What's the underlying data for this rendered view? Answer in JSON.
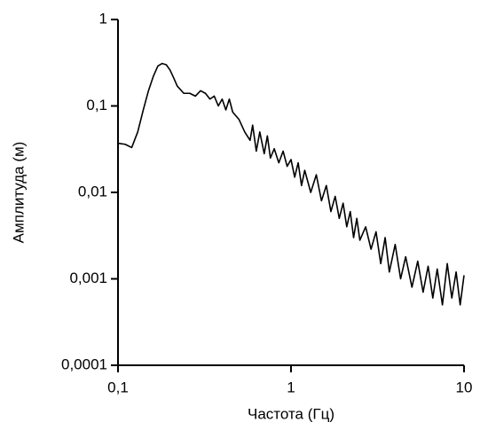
{
  "chart_data": {
    "type": "line",
    "xlabel": "Частота (Гц)",
    "ylabel": "Амплитуда (м)",
    "xscale": "log",
    "yscale": "log",
    "color": "#000000",
    "x": [
      0.1,
      0.11,
      0.12,
      0.13,
      0.14,
      0.15,
      0.16,
      0.17,
      0.18,
      0.19,
      0.2,
      0.21,
      0.22,
      0.24,
      0.26,
      0.28,
      0.3,
      0.32,
      0.34,
      0.36,
      0.38,
      0.4,
      0.42,
      0.44,
      0.46,
      0.5,
      0.54,
      0.58,
      0.6,
      0.63,
      0.66,
      0.7,
      0.73,
      0.76,
      0.8,
      0.85,
      0.9,
      0.95,
      1.0,
      1.05,
      1.1,
      1.15,
      1.2,
      1.3,
      1.4,
      1.5,
      1.6,
      1.7,
      1.8,
      1.9,
      2.0,
      2.1,
      2.2,
      2.3,
      2.4,
      2.5,
      2.7,
      2.9,
      3.1,
      3.3,
      3.5,
      3.7,
      4.0,
      4.3,
      4.6,
      5.0,
      5.4,
      5.8,
      6.2,
      6.6,
      7.0,
      7.5,
      8.0,
      8.5,
      9.0,
      9.5,
      10
    ],
    "values": [
      0.037,
      0.036,
      0.033,
      0.05,
      0.09,
      0.15,
      0.22,
      0.29,
      0.31,
      0.3,
      0.26,
      0.21,
      0.17,
      0.14,
      0.14,
      0.13,
      0.15,
      0.14,
      0.12,
      0.13,
      0.1,
      0.12,
      0.09,
      0.12,
      0.085,
      0.07,
      0.05,
      0.04,
      0.06,
      0.03,
      0.05,
      0.028,
      0.045,
      0.025,
      0.032,
      0.022,
      0.03,
      0.02,
      0.024,
      0.015,
      0.022,
      0.012,
      0.018,
      0.01,
      0.016,
      0.008,
      0.012,
      0.006,
      0.009,
      0.005,
      0.0075,
      0.004,
      0.006,
      0.003,
      0.005,
      0.0028,
      0.004,
      0.0022,
      0.0035,
      0.0015,
      0.003,
      0.0012,
      0.0025,
      0.001,
      0.0018,
      0.0008,
      0.0016,
      0.0007,
      0.0014,
      0.0006,
      0.0013,
      0.0005,
      0.0015,
      0.0006,
      0.0012,
      0.0005,
      0.0011
    ],
    "xlim": [
      0.1,
      10
    ],
    "ylim": [
      0.0001,
      1
    ],
    "xticks": [
      {
        "value": 0.1,
        "label": "0,1"
      },
      1,
      10
    ],
    "yticks": [
      {
        "value": 0.0001,
        "label": "0,0001"
      },
      {
        "value": 0.001,
        "label": "0,001"
      },
      {
        "value": 0.01,
        "label": "0,01"
      },
      {
        "value": 0.1,
        "label": "0,1"
      },
      1
    ]
  }
}
